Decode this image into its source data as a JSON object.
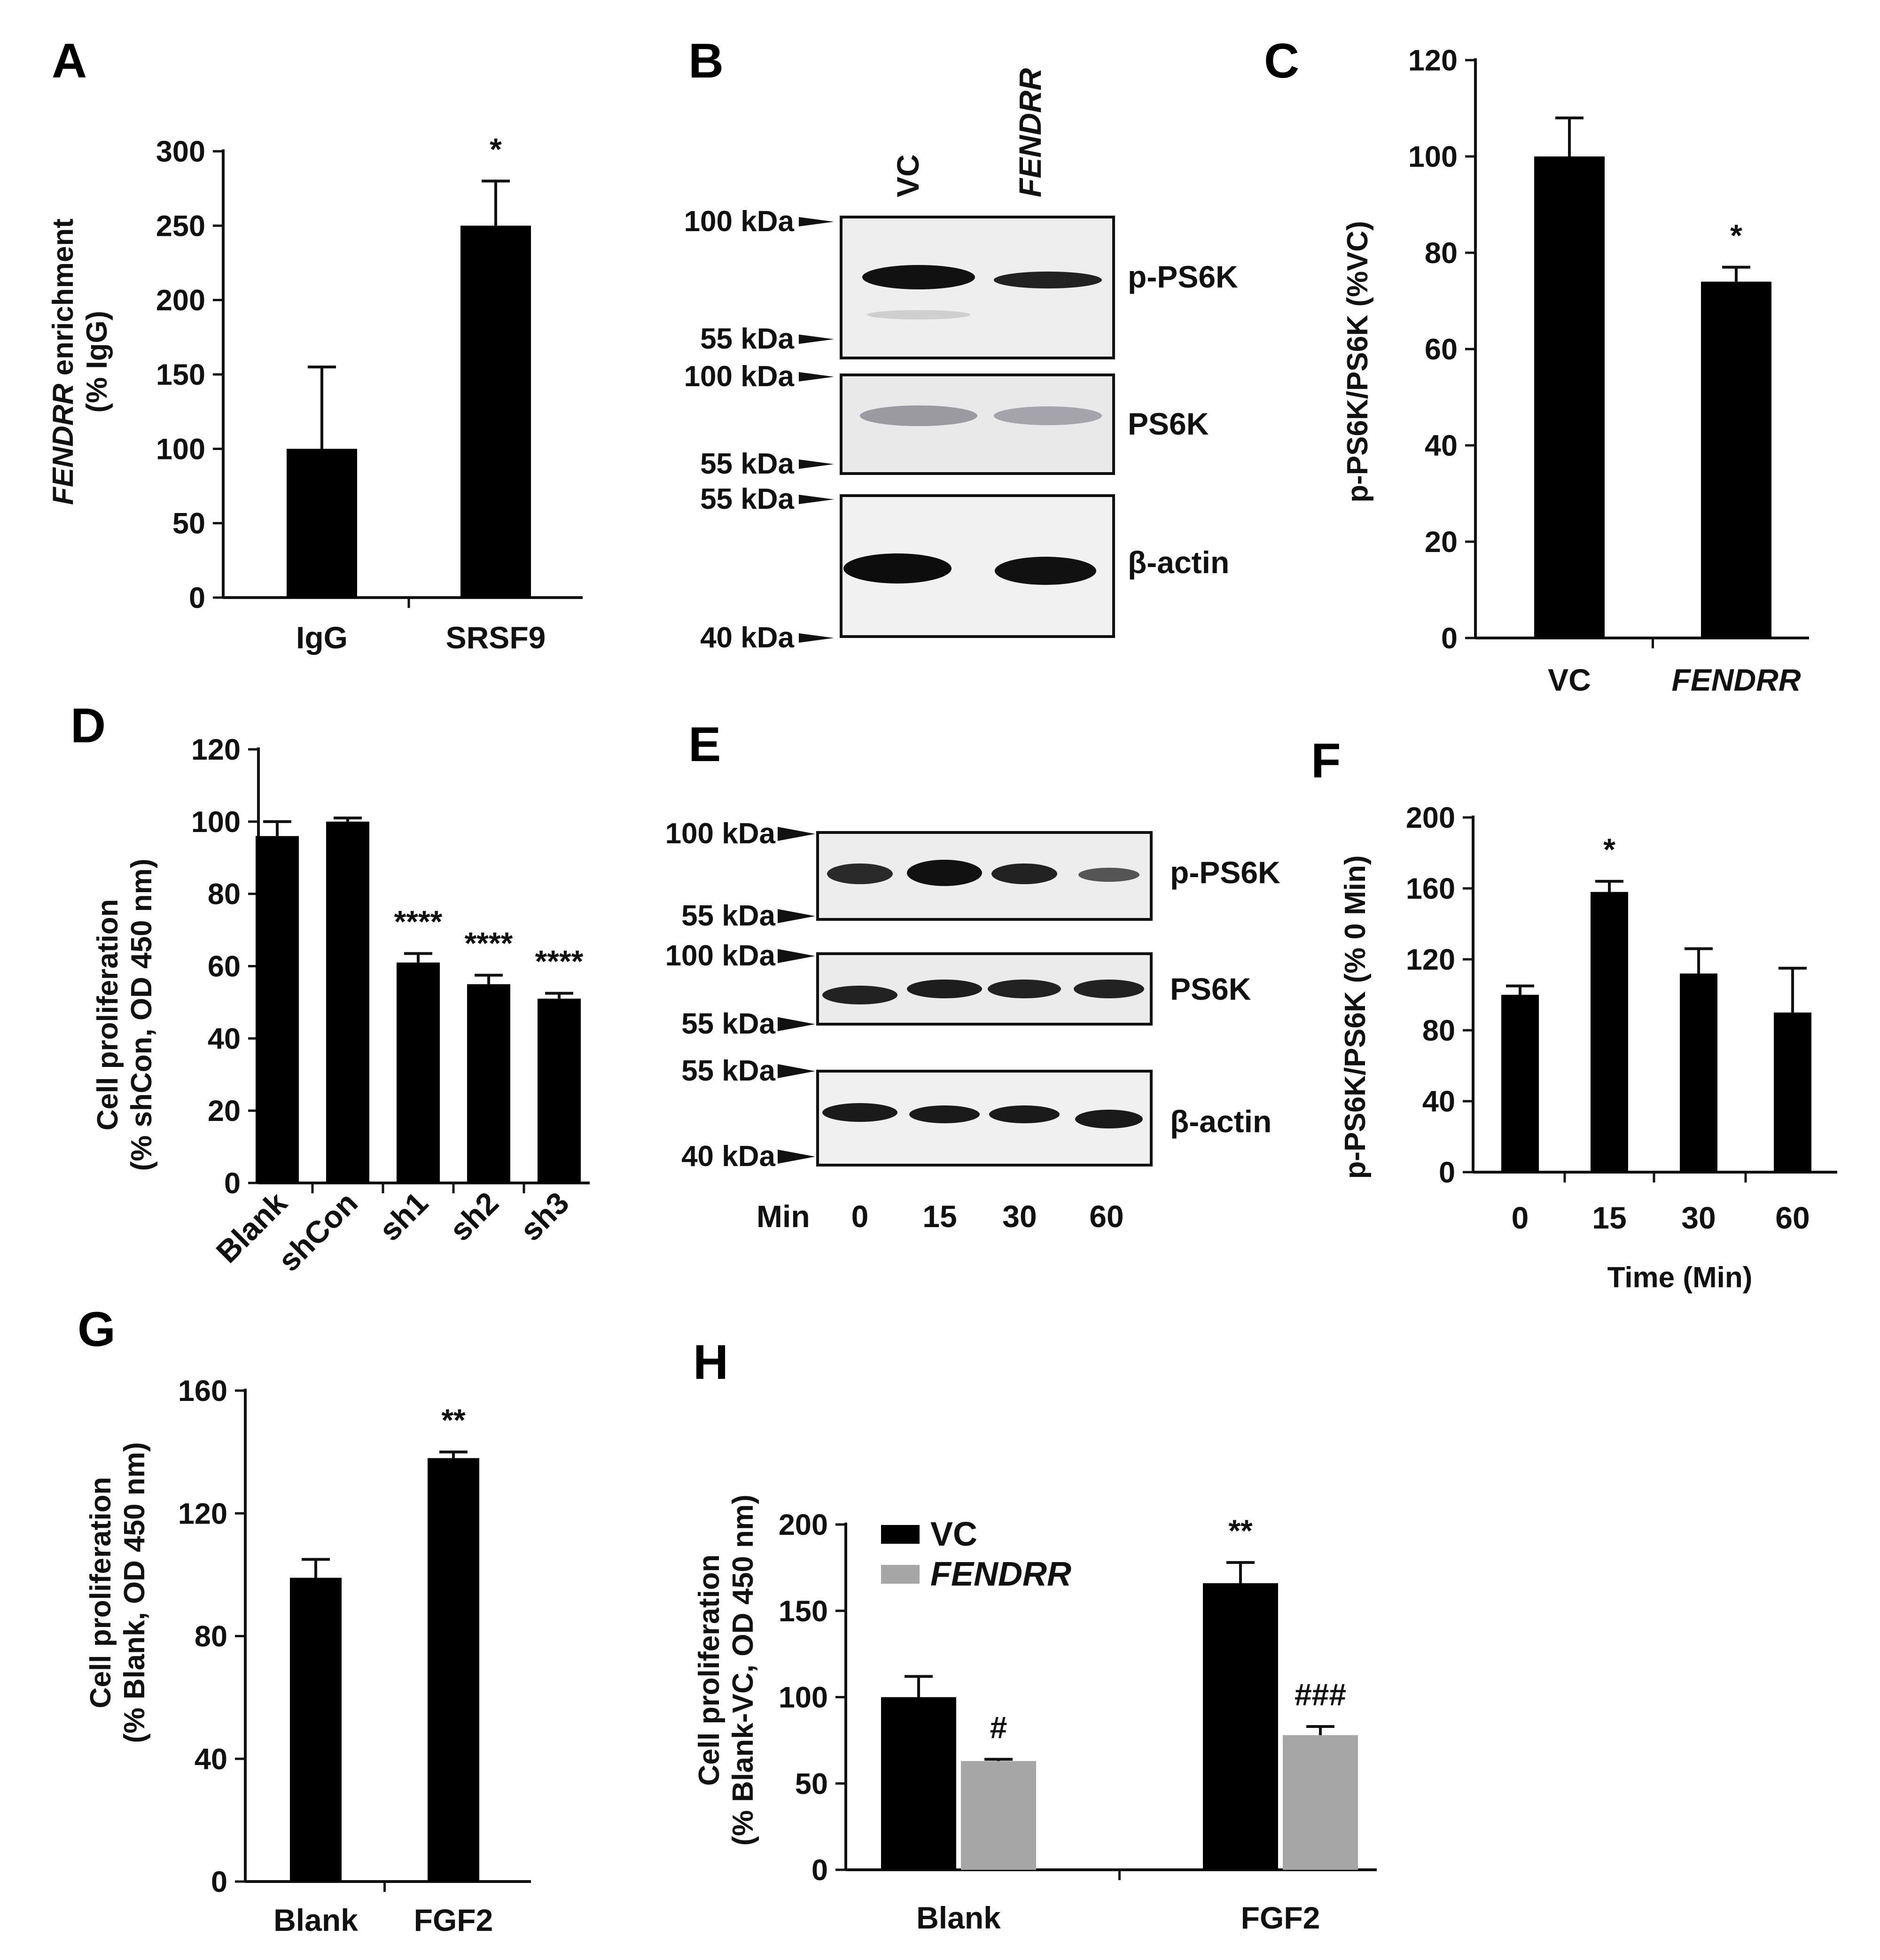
{
  "colors": {
    "vc": "#000000",
    "fendrr": "#a6a6a6",
    "blot_bg": "#efefef",
    "band": "#111111"
  },
  "chart_data": [
    {
      "panel": "A",
      "type": "bar",
      "categories": [
        "IgG",
        "SRSF9"
      ],
      "values": [
        100,
        250
      ],
      "errors": [
        55,
        30
      ],
      "annotations": [
        "",
        "*"
      ],
      "ylabel_italic": "FENDRR",
      "ylabel_rest": " enrichment",
      "ylabel2": "(% IgG)",
      "ylim": [
        0,
        300
      ],
      "yticks": [
        0,
        50,
        100,
        150,
        200,
        250,
        300
      ]
    },
    {
      "panel": "C",
      "type": "bar",
      "categories": [
        "VC",
        "FENDRR"
      ],
      "values": [
        100,
        74
      ],
      "errors": [
        8,
        3
      ],
      "annotations": [
        "",
        "*"
      ],
      "ylabel": "p-PS6K/PS6K (%VC)",
      "ylim": [
        0,
        120
      ],
      "yticks": [
        0,
        20,
        40,
        60,
        80,
        100,
        120
      ]
    },
    {
      "panel": "D",
      "type": "bar",
      "categories": [
        "Blank",
        "shCon",
        "sh1",
        "sh2",
        "sh3"
      ],
      "values": [
        96,
        100,
        61,
        55,
        51
      ],
      "errors": [
        4,
        1,
        2.5,
        2.5,
        1.5
      ],
      "annotations": [
        "",
        "",
        "****",
        "****",
        "****"
      ],
      "ylabel": "Cell proliferation",
      "ylabel2": "(% shCon, OD 450 nm)",
      "ylim": [
        0,
        120
      ],
      "yticks": [
        0,
        20,
        40,
        60,
        80,
        100,
        120
      ]
    },
    {
      "panel": "F",
      "type": "bar",
      "categories": [
        "0",
        "15",
        "30",
        "60"
      ],
      "values": [
        100,
        158,
        112,
        90
      ],
      "errors": [
        5,
        6,
        14,
        25
      ],
      "annotations": [
        "",
        "*",
        "",
        ""
      ],
      "ylabel": "p-PS6K/PS6K (% 0 Min)",
      "xlabel": "Time (Min)",
      "ylim": [
        0,
        200
      ],
      "yticks": [
        0,
        40,
        80,
        120,
        160,
        200
      ]
    },
    {
      "panel": "G",
      "type": "bar",
      "categories": [
        "Blank",
        "FGF2"
      ],
      "values": [
        99,
        138
      ],
      "errors": [
        6,
        2
      ],
      "annotations": [
        "",
        "**"
      ],
      "ylabel": "Cell proliferation",
      "ylabel2": "(% Blank, OD 450 nm)",
      "ylim": [
        0,
        160
      ],
      "yticks": [
        0,
        40,
        80,
        120,
        160
      ]
    },
    {
      "panel": "H",
      "type": "bar",
      "categories": [
        "Blank",
        "FGF2"
      ],
      "series": [
        {
          "name": "VC",
          "values": [
            100,
            166
          ],
          "errors": [
            12,
            12
          ],
          "annotations": [
            "",
            "**"
          ]
        },
        {
          "name": "FENDRR",
          "values": [
            63,
            78
          ],
          "errors": [
            1,
            5
          ],
          "annotations": [
            "#",
            "###"
          ]
        }
      ],
      "ylabel": "Cell proliferation",
      "ylabel2": "(% Blank-VC, OD 450 nm)",
      "ylim": [
        0,
        200
      ],
      "yticks": [
        0,
        50,
        100,
        150,
        200
      ],
      "legend": "top-left"
    }
  ],
  "western_blots": [
    {
      "panel": "B",
      "lanes": [
        "VC",
        "FENDRR"
      ],
      "bands": [
        "p-PS6K",
        "PS6K",
        "β-actin"
      ],
      "markers": [
        "100 kDa",
        "55 kDa",
        "100 kDa",
        "55 kDa",
        "55 kDa",
        "40 kDa"
      ]
    },
    {
      "panel": "E",
      "lane_header": "Min",
      "lanes": [
        "0",
        "15",
        "30",
        "60"
      ],
      "bands": [
        "p-PS6K",
        "PS6K",
        "β-actin"
      ],
      "markers": [
        "100 kDa",
        "55 kDa",
        "100 kDa",
        "55 kDa",
        "55 kDa",
        "40 kDa"
      ]
    }
  ],
  "panel_labels": [
    "A",
    "B",
    "C",
    "D",
    "E",
    "F",
    "G",
    "H"
  ]
}
